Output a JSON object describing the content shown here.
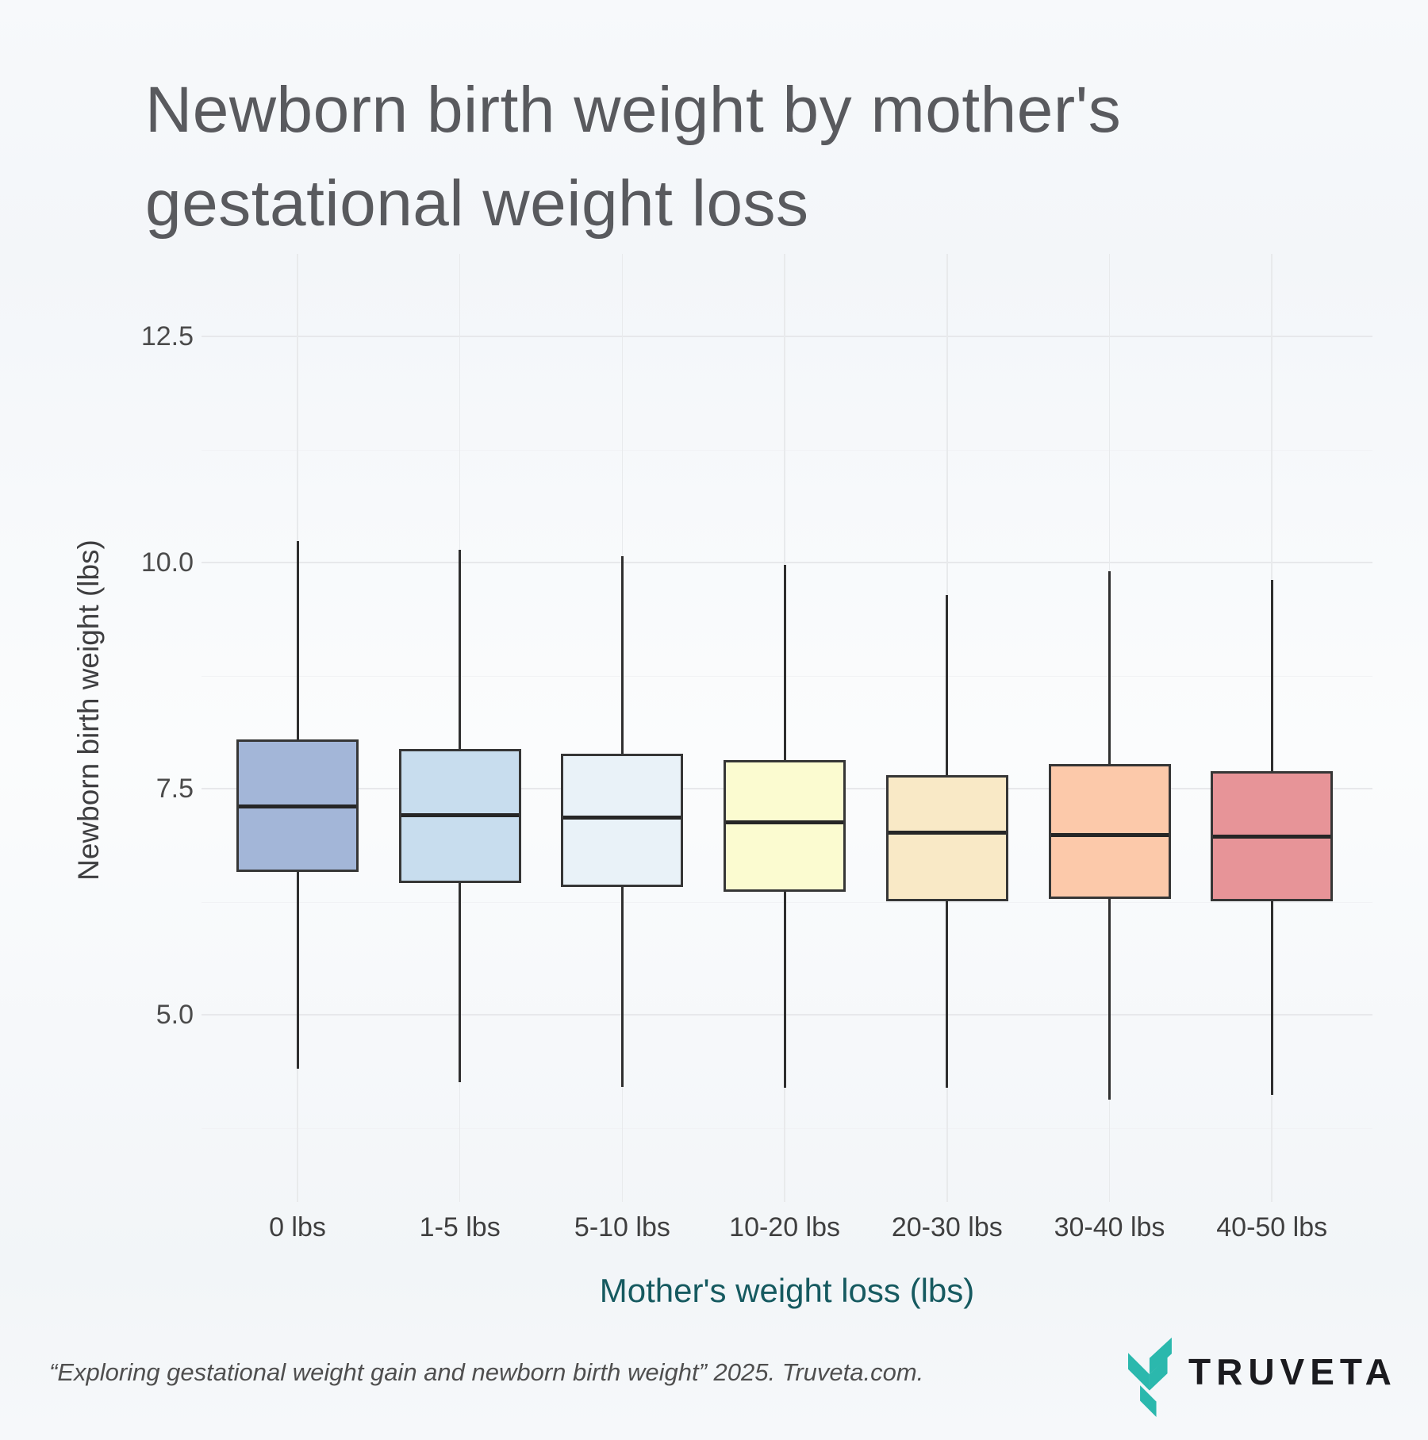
{
  "title_line1": "Newborn birth weight by mother's",
  "title_line2": "gestational weight loss",
  "footer": {
    "citation": "“Exploring gestational weight gain and newborn birth weight” 2025. Truveta.com."
  },
  "logo": {
    "wordmark": "TRUVETA",
    "mark_color": "#2bb8ad",
    "text_color": "#1b1b1f"
  },
  "chart_data": {
    "type": "boxplot",
    "title": "Newborn birth weight by mother's gestational weight loss",
    "xlabel": "Mother's weight loss (lbs)",
    "ylabel": "Newborn birth weight (lbs)",
    "categories": [
      "0 lbs",
      "1-5 lbs",
      "5-10 lbs",
      "10-20 lbs",
      "20-30 lbs",
      "30-40 lbs",
      "40-50 lbs"
    ],
    "ylim": [
      2.9,
      13.4
    ],
    "grid": true,
    "legend": "none",
    "y_ticks": [
      {
        "v": 5.0,
        "label": "5.0"
      },
      {
        "v": 7.5,
        "label": "7.5"
      },
      {
        "v": 10.0,
        "label": "10.0"
      },
      {
        "v": 12.5,
        "label": "12.5"
      }
    ],
    "y_minor_ticks": [
      3.75,
      6.25,
      8.75,
      11.25
    ],
    "series": [
      {
        "category": "0 lbs",
        "whisker_low": 4.4,
        "q1": 6.58,
        "median": 7.3,
        "q3": 8.04,
        "whisker_high": 10.24,
        "fill": "#a3b6d8"
      },
      {
        "category": "1-5 lbs",
        "whisker_low": 4.25,
        "q1": 6.46,
        "median": 7.21,
        "q3": 7.94,
        "whisker_high": 10.14,
        "fill": "#c8ddee"
      },
      {
        "category": "5-10 lbs",
        "whisker_low": 4.2,
        "q1": 6.41,
        "median": 7.18,
        "q3": 7.89,
        "whisker_high": 10.07,
        "fill": "#e9f2f8"
      },
      {
        "category": "10-20 lbs",
        "whisker_low": 4.19,
        "q1": 6.36,
        "median": 7.13,
        "q3": 7.82,
        "whisker_high": 9.97,
        "fill": "#fbfbd0"
      },
      {
        "category": "20-30 lbs",
        "whisker_low": 4.19,
        "q1": 6.25,
        "median": 7.01,
        "q3": 7.65,
        "whisker_high": 9.64,
        "fill": "#f9e9c6"
      },
      {
        "category": "30-40 lbs",
        "whisker_low": 4.06,
        "q1": 6.28,
        "median": 6.99,
        "q3": 7.77,
        "whisker_high": 9.9,
        "fill": "#fcc9aa"
      },
      {
        "category": "40-50 lbs",
        "whisker_low": 4.11,
        "q1": 6.25,
        "median": 6.97,
        "q3": 7.69,
        "whisker_high": 9.81,
        "fill": "#e79498"
      }
    ]
  }
}
